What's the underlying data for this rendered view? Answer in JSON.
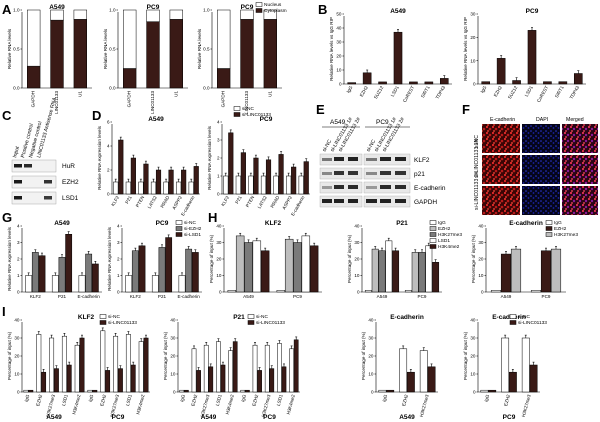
{
  "panel_labels": {
    "A": "A",
    "B": "B",
    "C": "C",
    "D": "D",
    "E": "E",
    "F": "F",
    "G": "G",
    "H": "H",
    "I": "I"
  },
  "colors": {
    "black": "#000000",
    "dark": "#3a1a16",
    "gray": "#7a7a7a",
    "light": "#bdbdbd",
    "white": "#ffffff",
    "red": "#d6262c"
  },
  "chart_data": [
    {
      "id": "A1",
      "type": "stacked-bar",
      "title": "A549",
      "ylabel": "Relative RNA levels",
      "categories": [
        "GAPDH",
        "LINC01133",
        "U1"
      ],
      "ylim": [
        0,
        1
      ],
      "ticks": [
        "0.0",
        "0.5",
        "1.0"
      ],
      "series": [
        {
          "name": "Nucleus",
          "fill": "white",
          "values": [
            0.72,
            0.13,
            0.12
          ]
        },
        {
          "name": "Cytoplasm",
          "fill": "dark",
          "values": [
            0.28,
            0.87,
            0.88
          ]
        }
      ]
    },
    {
      "id": "A2",
      "type": "stacked-bar",
      "title": "PC9",
      "ylabel": "Relative RNA levels",
      "categories": [
        "GAPDH",
        "LINC01133",
        "U1"
      ],
      "ylim": [
        0,
        1
      ],
      "ticks": [
        "0.0",
        "0.5",
        "1.0"
      ],
      "series": [
        {
          "name": "Nucleus",
          "fill": "white",
          "values": [
            0.75,
            0.15,
            0.12
          ]
        },
        {
          "name": "Cytoplasm",
          "fill": "dark",
          "values": [
            0.25,
            0.85,
            0.88
          ]
        }
      ]
    },
    {
      "id": "A3",
      "type": "stacked-bar",
      "title": "PC9",
      "ylabel": "Relative RNA levels",
      "categories": [
        "GAPDH",
        "LINC01133",
        "U1"
      ],
      "ylim": [
        0,
        1
      ],
      "ticks": [
        "0.0",
        "0.5",
        "1.0"
      ],
      "legend": [
        "Nucleus",
        "Cytoplasm"
      ],
      "series": [
        {
          "name": "Nucleus",
          "fill": "white",
          "values": [
            0.75,
            0.12,
            0.12
          ]
        },
        {
          "name": "Cytoplasm",
          "fill": "dark",
          "values": [
            0.25,
            0.88,
            0.88
          ]
        }
      ]
    },
    {
      "id": "B1",
      "type": "bar",
      "title": "A549",
      "ylabel": "Relative RNA levels  vs IgG RIP",
      "categories": [
        "IgG",
        "EZH2",
        "SUZ12",
        "LSD1",
        "CoREST",
        "SIRT1",
        "TDP43"
      ],
      "ylim": [
        0,
        50
      ],
      "ticks": [
        "0",
        "10",
        "20",
        "30",
        "40",
        "50"
      ],
      "series": [
        {
          "name": "RIP",
          "fill": "dark",
          "values": [
            1,
            8,
            1.5,
            37,
            1.5,
            1.5,
            4
          ]
        }
      ]
    },
    {
      "id": "B2",
      "type": "bar",
      "title": "PC9",
      "ylabel": "Relative RNA levels  vs IgG RIP",
      "categories": [
        "IgG",
        "EZH2",
        "SUZ12",
        "LSD1",
        "CoREST",
        "SIRT1",
        "TDP43"
      ],
      "ylim": [
        0,
        30
      ],
      "ticks": [
        "0",
        "10",
        "20",
        "30"
      ],
      "series": [
        {
          "name": "RIP",
          "fill": "dark",
          "values": [
            1,
            11,
            1.5,
            23,
            1,
            1,
            4.5
          ]
        }
      ]
    },
    {
      "id": "D1",
      "type": "bar",
      "title": "A549",
      "ylabel": "Relative RNA expression levels",
      "categories": [
        "KLF2",
        "P21",
        "PTEN",
        "LATS2",
        "RRAD",
        "ASPP2",
        "E-cadherin"
      ],
      "ylim": [
        0,
        6
      ],
      "ticks": [
        "0",
        "2",
        "4",
        "6"
      ],
      "series": [
        {
          "name": "si-NC",
          "fill": "white",
          "values": [
            1,
            1,
            1,
            1,
            1,
            1,
            1
          ]
        },
        {
          "name": "si-LINC01133",
          "fill": "dark",
          "values": [
            4.5,
            3,
            2.5,
            2,
            2,
            2,
            2.3
          ]
        }
      ]
    },
    {
      "id": "D2",
      "type": "bar",
      "title": "PC9",
      "ylabel": "Relative RNA expression levels",
      "categories": [
        "KLF2",
        "P21",
        "PTEN",
        "LATS2",
        "RRAD",
        "ASPP2",
        "E-cadherin"
      ],
      "ylim": [
        0,
        4
      ],
      "ticks": [
        "0",
        "1",
        "2",
        "3",
        "4"
      ],
      "legend": [
        "si-NC",
        "si-LINC01133"
      ],
      "series": [
        {
          "name": "si-NC",
          "fill": "white",
          "values": [
            1,
            1,
            1,
            1,
            1,
            1,
            1
          ]
        },
        {
          "name": "si-LINC01133",
          "fill": "dark",
          "values": [
            3.4,
            2.3,
            2,
            1.9,
            2.2,
            1.5,
            1.8
          ]
        }
      ]
    },
    {
      "id": "G1",
      "type": "bar",
      "title": "A549",
      "ylabel": "Relative RNA expression levels",
      "categories": [
        "KLF2",
        "P21",
        "E-cadherin"
      ],
      "ylim": [
        0,
        4
      ],
      "ticks": [
        "0",
        "1",
        "2",
        "3",
        "4"
      ],
      "series": [
        {
          "name": "si-NC",
          "fill": "white",
          "values": [
            1,
            1,
            1
          ]
        },
        {
          "name": "si-EZH2",
          "fill": "gray",
          "values": [
            2.4,
            2.1,
            2.3
          ]
        },
        {
          "name": "si-LSD1",
          "fill": "dark",
          "values": [
            2.2,
            3.5,
            1.7
          ]
        }
      ]
    },
    {
      "id": "G2",
      "type": "bar",
      "title": "PC9",
      "ylabel": "Relative RNA expression levels",
      "categories": [
        "KLF2",
        "P21",
        "E-cadherin"
      ],
      "ylim": [
        0,
        4
      ],
      "ticks": [
        "0",
        "1",
        "2",
        "3",
        "4"
      ],
      "legend": [
        "si-NC",
        "si-EZH2",
        "si-LSD1"
      ],
      "series": [
        {
          "name": "si-NC",
          "fill": "white",
          "values": [
            1,
            1,
            1
          ]
        },
        {
          "name": "si-EZH2",
          "fill": "gray",
          "values": [
            2.5,
            2.7,
            2.6
          ]
        },
        {
          "name": "si-LSD1",
          "fill": "dark",
          "values": [
            2.8,
            3.3,
            2.4
          ]
        }
      ]
    },
    {
      "id": "H1",
      "type": "bar",
      "title": "KLF2",
      "ylabel": "Percentage of input (%)",
      "categories": [
        "A549",
        "PC9"
      ],
      "ylim": [
        0,
        40
      ],
      "ticks": [
        "0",
        "10",
        "20",
        "30",
        "40"
      ],
      "series": [
        {
          "name": "IgG",
          "fill": "white",
          "values": [
            1,
            1
          ]
        },
        {
          "name": "EZH2",
          "fill": "light",
          "values": [
            34,
            32
          ]
        },
        {
          "name": "H3K27me3",
          "fill": "gray",
          "values": [
            30,
            30
          ]
        },
        {
          "name": "LSD1",
          "fill": "white",
          "values": [
            31,
            34
          ]
        },
        {
          "name": "H3K4me2",
          "fill": "dark",
          "values": [
            25,
            28
          ]
        }
      ]
    },
    {
      "id": "H2",
      "type": "bar",
      "title": "P21",
      "ylabel": "Percentage of input (%)",
      "categories": [
        "A549",
        "PC9"
      ],
      "ylim": [
        0,
        40
      ],
      "ticks": [
        "0",
        "10",
        "20",
        "30",
        "40"
      ],
      "legend": [
        "IgG",
        "EZH2",
        "H3K27me3",
        "LSD1",
        "H3K4me2"
      ],
      "series": [
        {
          "name": "IgG",
          "fill": "white",
          "values": [
            1,
            1
          ]
        },
        {
          "name": "EZH2",
          "fill": "light",
          "values": [
            26,
            24
          ]
        },
        {
          "name": "H3K27me3",
          "fill": "gray",
          "values": [
            25,
            24
          ]
        },
        {
          "name": "LSD1",
          "fill": "white",
          "values": [
            31,
            28
          ]
        },
        {
          "name": "H3K4me2",
          "fill": "dark",
          "values": [
            25,
            18
          ]
        }
      ]
    },
    {
      "id": "H3",
      "type": "bar",
      "title": "E-cadherin",
      "ylabel": "Percentage of input (%)",
      "categories": [
        "A549",
        "PC9"
      ],
      "ylim": [
        0,
        40
      ],
      "ticks": [
        "0",
        "10",
        "20",
        "30",
        "40"
      ],
      "legend": [
        "IgG",
        "EZH2",
        "H3K27me3"
      ],
      "series": [
        {
          "name": "IgG",
          "fill": "white",
          "values": [
            1,
            1
          ]
        },
        {
          "name": "EZH2",
          "fill": "dark",
          "values": [
            23,
            25
          ]
        },
        {
          "name": "H3K27me3",
          "fill": "light",
          "values": [
            26,
            26
          ]
        }
      ]
    },
    {
      "id": "I1",
      "type": "bar",
      "title": "KLF2",
      "ylabel": "Percentage of input (%)",
      "categories": [
        "IgG",
        "EZH2",
        "H3K27me3",
        "LSD1",
        "H3K4me2",
        "IgG",
        "EZH2",
        "H3K27me3",
        "LSD1",
        "H3K4me2"
      ],
      "groups": [
        "A549",
        "PC9"
      ],
      "ylim": [
        0,
        40
      ],
      "ticks": [
        "0",
        "10",
        "20",
        "30",
        "40"
      ],
      "legend": [
        "si-NC",
        "si-LINC01133"
      ],
      "series": [
        {
          "name": "si-NC",
          "fill": "white",
          "values": [
            1,
            32,
            30,
            31,
            26,
            1,
            34,
            31,
            32,
            28
          ]
        },
        {
          "name": "si-LINC01133",
          "fill": "dark",
          "values": [
            1,
            11,
            13,
            15,
            30,
            1,
            12,
            13,
            15,
            30
          ]
        }
      ]
    },
    {
      "id": "I2",
      "type": "bar",
      "title": "P21",
      "ylabel": "Percentage of input (%)",
      "categories": [
        "IgG",
        "EZH2",
        "H3K27me3",
        "LSD1",
        "H3K4me2",
        "IgG",
        "EZH2",
        "H3K27me3",
        "LSD1",
        "H3K4me2"
      ],
      "groups": [
        "A549",
        "PC9"
      ],
      "ylim": [
        0,
        40
      ],
      "ticks": [
        "0",
        "10",
        "20",
        "30",
        "40"
      ],
      "legend": [
        "si-NC",
        "si-LINC01133"
      ],
      "series": [
        {
          "name": "si-NC",
          "fill": "white",
          "values": [
            1,
            24,
            26,
            28,
            23,
            1,
            26,
            26,
            27,
            24
          ]
        },
        {
          "name": "si-LINC01133",
          "fill": "dark",
          "values": [
            1,
            12,
            14,
            15,
            28,
            1,
            12,
            13,
            14,
            29
          ]
        }
      ]
    },
    {
      "id": "I3",
      "type": "bar",
      "title": "E-cadherin",
      "ylabel": "Percentage of input (%)",
      "categories": [
        "IgG",
        "EZH2",
        "H3K27me3"
      ],
      "groups": [
        "A549"
      ],
      "ylim": [
        0,
        40
      ],
      "ticks": [
        "0",
        "10",
        "20",
        "30",
        "40"
      ],
      "series": [
        {
          "name": "si-NC",
          "fill": "white",
          "values": [
            1,
            24,
            23
          ]
        },
        {
          "name": "si-LINC01133",
          "fill": "dark",
          "values": [
            1,
            11,
            14
          ]
        }
      ]
    },
    {
      "id": "I4",
      "type": "bar",
      "title": "E-cadherin",
      "ylabel": "Percentage of input (%)",
      "categories": [
        "IgG",
        "EZH2",
        "H3K27me3"
      ],
      "groups": [
        "PC9"
      ],
      "ylim": [
        0,
        40
      ],
      "ticks": [
        "0",
        "10",
        "20",
        "30",
        "40"
      ],
      "legend": [
        "si-NC",
        "si-LINC01133"
      ],
      "series": [
        {
          "name": "si-NC",
          "fill": "white",
          "values": [
            1,
            30,
            30
          ]
        },
        {
          "name": "si-LINC01133",
          "fill": "dark",
          "values": [
            1,
            11,
            15
          ]
        }
      ]
    }
  ],
  "panel_c": {
    "columns": [
      "Input",
      "Positive control",
      "Negative control",
      "LINC01133 Antisense RNA"
    ],
    "rows": [
      "HuR",
      "EZH2",
      "LSD1"
    ]
  },
  "panel_e": {
    "cell_lines": [
      "A549",
      "PC9"
    ],
    "lanes": [
      "si-NC",
      "si-LINC01133 1#",
      "si-LINC01133 2#",
      "si-NC",
      "si-LINC01133 1#",
      "si-LINC01133 2#"
    ],
    "proteins": [
      "KLF2",
      "p21",
      "E-cadherin",
      "GAPDH"
    ]
  },
  "panel_f": {
    "columns": [
      "E-cadherin",
      "DAPI",
      "Merged"
    ],
    "rows": [
      "si-NC",
      "si-LINC01133 1#",
      "si-LINC01133 2#"
    ]
  }
}
